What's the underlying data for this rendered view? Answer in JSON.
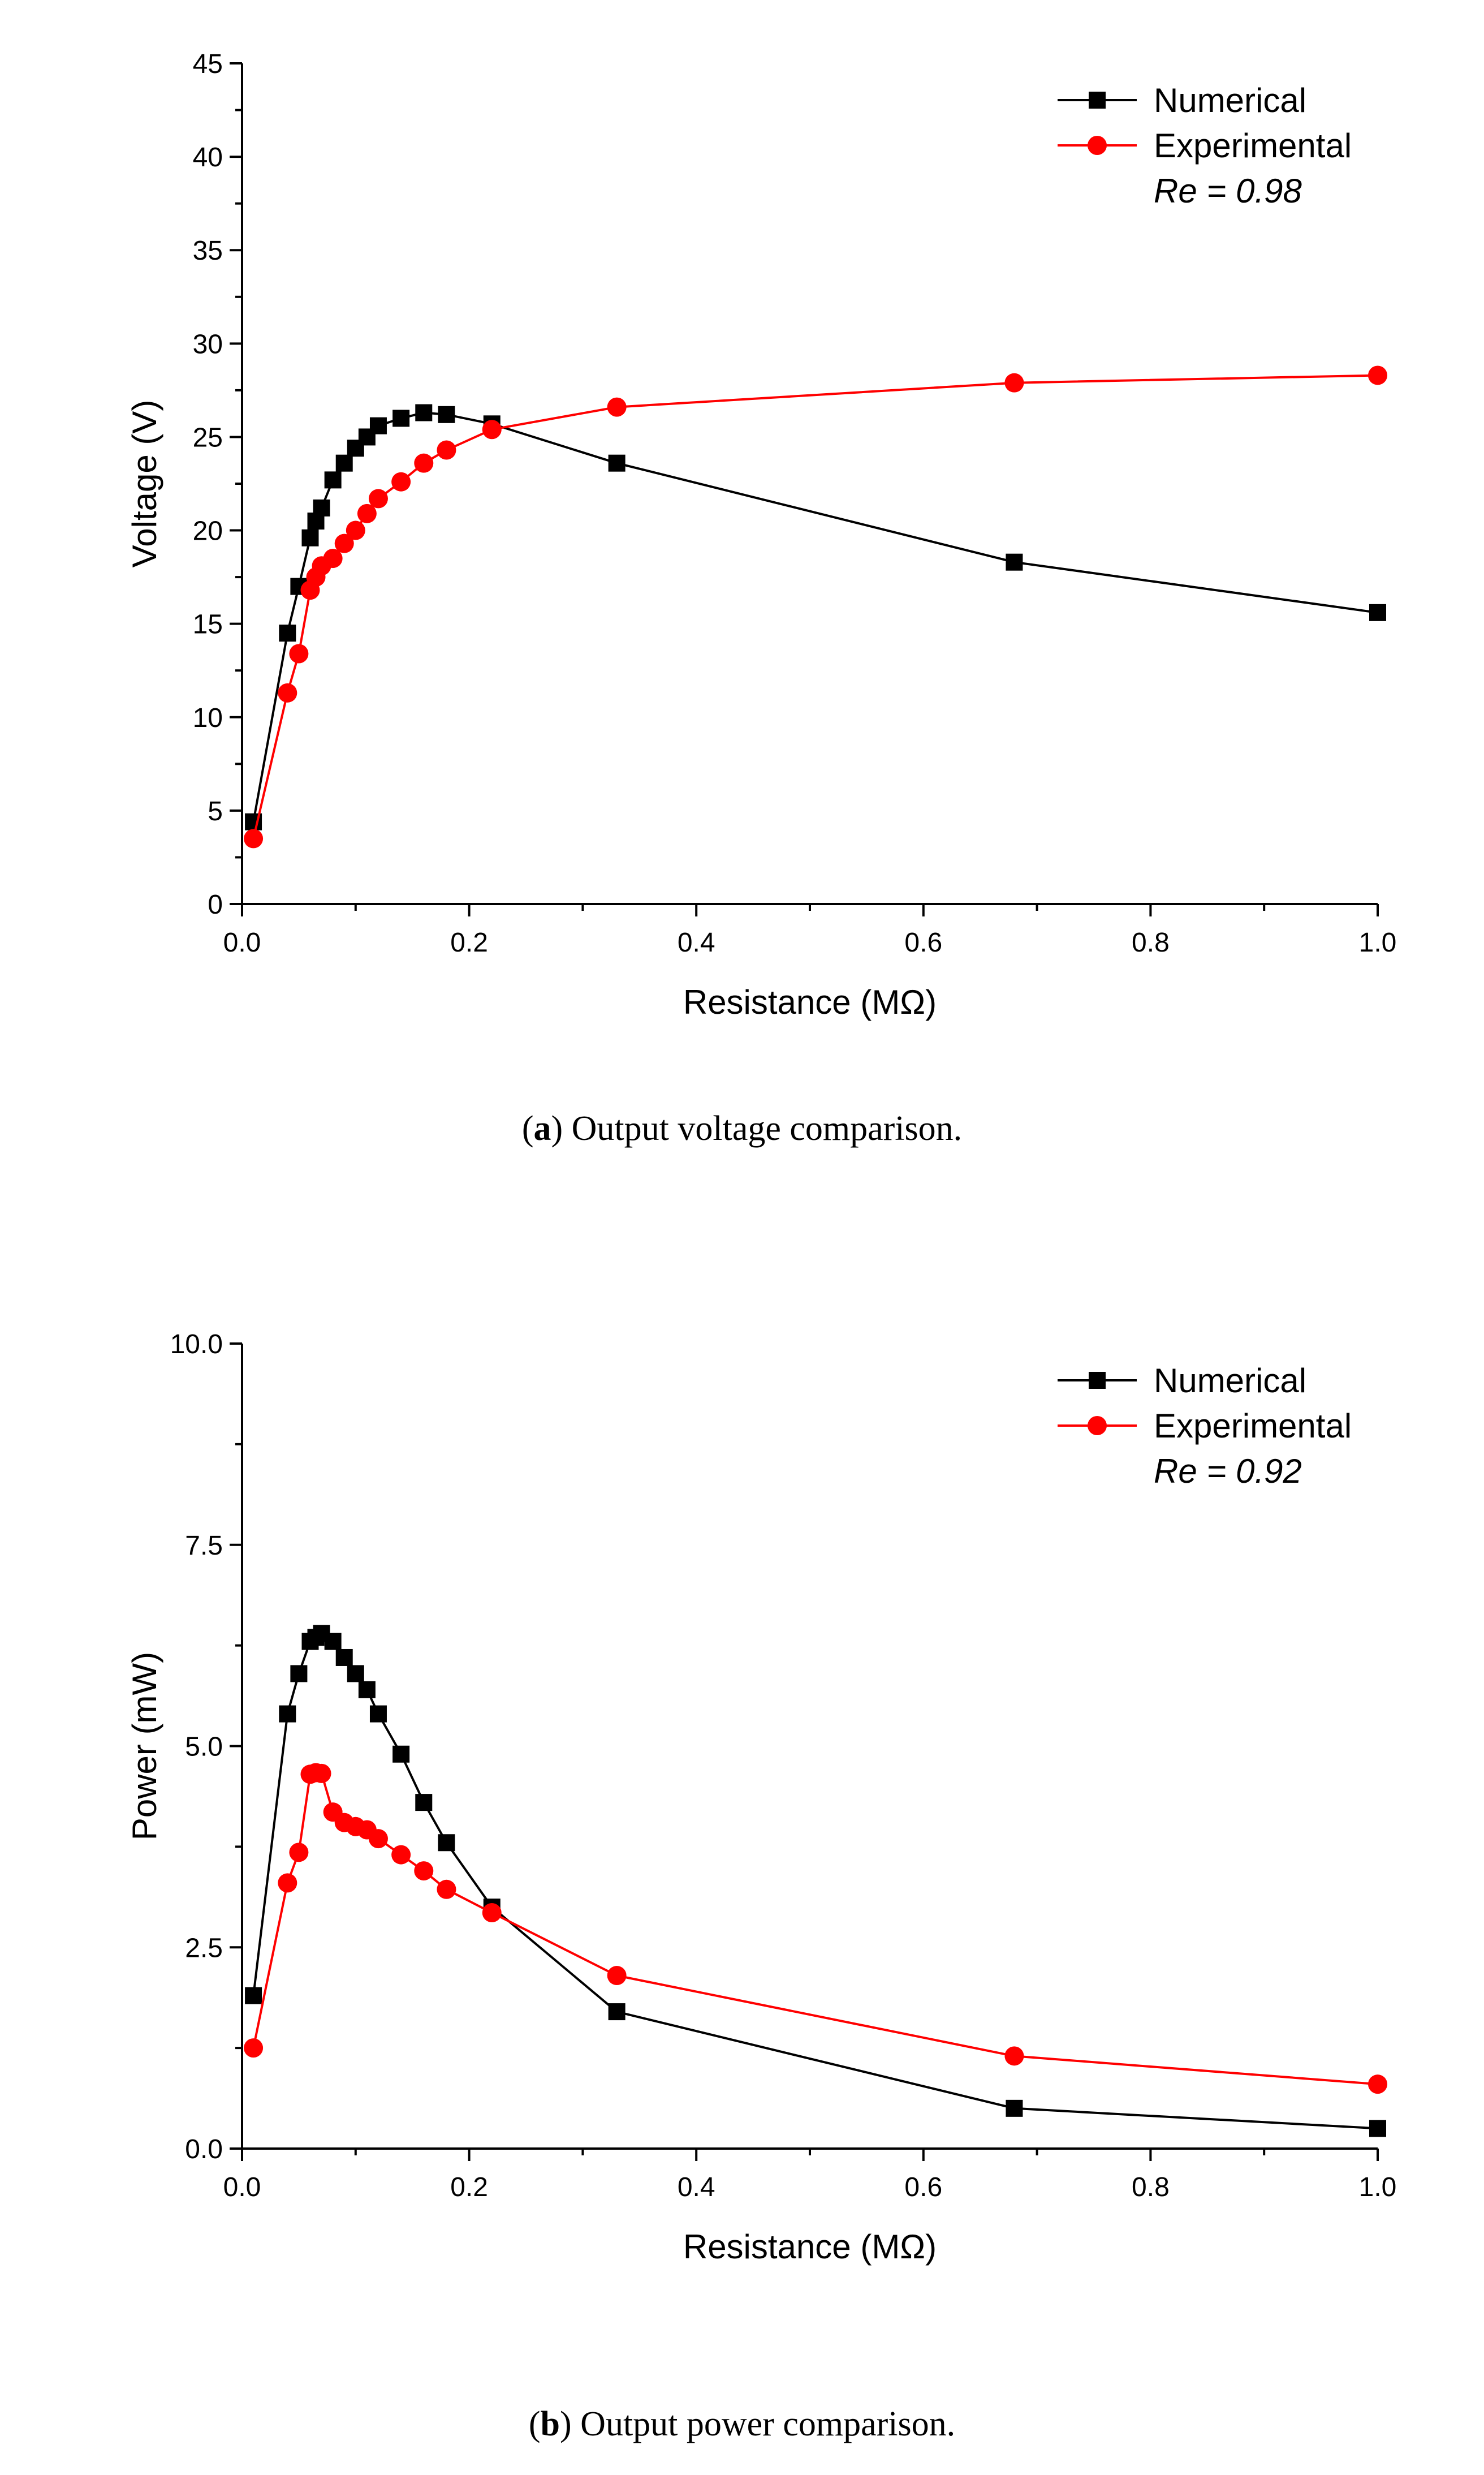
{
  "chart_data": [
    {
      "type": "line",
      "title": "",
      "xlabel": "Resistance (MΩ)",
      "ylabel": "Voltage (V)",
      "xlim": [
        0.0,
        1.0
      ],
      "ylim": [
        0,
        45
      ],
      "x_ticks": [
        0.0,
        0.2,
        0.4,
        0.6,
        0.8,
        1.0
      ],
      "x_tick_labels": [
        "0.0",
        "0.2",
        "0.4",
        "0.6",
        "0.8",
        "1.0"
      ],
      "y_ticks": [
        0,
        5,
        10,
        15,
        20,
        25,
        30,
        35,
        40,
        45
      ],
      "y_tick_labels": [
        "0",
        "5",
        "10",
        "15",
        "20",
        "25",
        "30",
        "35",
        "40",
        "45"
      ],
      "legend_position": "top-right",
      "annotation": "Re = 0.98",
      "caption_letter": "a",
      "caption_text": "Output voltage comparison.",
      "series": [
        {
          "name": "Numerical",
          "color": "#000000",
          "marker": "square",
          "x": [
            0.01,
            0.04,
            0.05,
            0.06,
            0.065,
            0.07,
            0.08,
            0.09,
            0.1,
            0.11,
            0.12,
            0.14,
            0.16,
            0.18,
            0.22,
            0.33,
            0.68,
            1.0
          ],
          "values": [
            4.4,
            14.5,
            17.0,
            19.6,
            20.5,
            21.2,
            22.7,
            23.6,
            24.4,
            25.0,
            25.6,
            26.0,
            26.3,
            26.2,
            25.7,
            23.6,
            18.3,
            15.6
          ]
        },
        {
          "name": "Experimental",
          "color": "#ff0000",
          "marker": "circle",
          "x": [
            0.01,
            0.04,
            0.05,
            0.06,
            0.065,
            0.07,
            0.08,
            0.09,
            0.1,
            0.11,
            0.12,
            0.14,
            0.16,
            0.18,
            0.22,
            0.33,
            0.68,
            1.0
          ],
          "values": [
            3.5,
            11.3,
            13.4,
            16.8,
            17.5,
            18.1,
            18.5,
            19.3,
            20.0,
            20.9,
            21.7,
            22.6,
            23.6,
            24.3,
            25.4,
            26.6,
            27.9,
            28.3
          ]
        }
      ]
    },
    {
      "type": "line",
      "title": "",
      "xlabel": "Resistance (MΩ)",
      "ylabel": "Power (mW)",
      "xlim": [
        0.0,
        1.0
      ],
      "ylim": [
        0,
        10
      ],
      "x_ticks": [
        0.0,
        0.2,
        0.4,
        0.6,
        0.8,
        1.0
      ],
      "x_tick_labels": [
        "0.0",
        "0.2",
        "0.4",
        "0.6",
        "0.8",
        "1.0"
      ],
      "y_ticks": [
        0,
        2.5,
        5,
        7.5,
        10
      ],
      "y_tick_labels": [
        "0.0",
        "2.5",
        "5.0",
        "7.5",
        "10.0"
      ],
      "legend_position": "top-right",
      "annotation": "Re = 0.92",
      "caption_letter": "b",
      "caption_text": "Output power comparison.",
      "series": [
        {
          "name": "Numerical",
          "color": "#000000",
          "marker": "square",
          "x": [
            0.01,
            0.04,
            0.05,
            0.06,
            0.065,
            0.07,
            0.08,
            0.09,
            0.1,
            0.11,
            0.12,
            0.14,
            0.16,
            0.18,
            0.22,
            0.33,
            0.68,
            1.0
          ],
          "values": [
            1.9,
            5.4,
            5.9,
            6.3,
            6.35,
            6.4,
            6.3,
            6.1,
            5.9,
            5.7,
            5.4,
            4.9,
            4.3,
            3.8,
            3.0,
            1.7,
            0.5,
            0.25
          ]
        },
        {
          "name": "Experimental",
          "color": "#ff0000",
          "marker": "circle",
          "x": [
            0.01,
            0.04,
            0.05,
            0.06,
            0.065,
            0.07,
            0.08,
            0.09,
            0.1,
            0.11,
            0.12,
            0.14,
            0.16,
            0.18,
            0.22,
            0.33,
            0.68,
            1.0
          ],
          "values": [
            1.25,
            3.3,
            3.68,
            4.65,
            4.67,
            4.66,
            4.18,
            4.05,
            4.0,
            3.96,
            3.85,
            3.65,
            3.45,
            3.22,
            2.93,
            2.15,
            1.15,
            0.8
          ]
        }
      ]
    }
  ]
}
